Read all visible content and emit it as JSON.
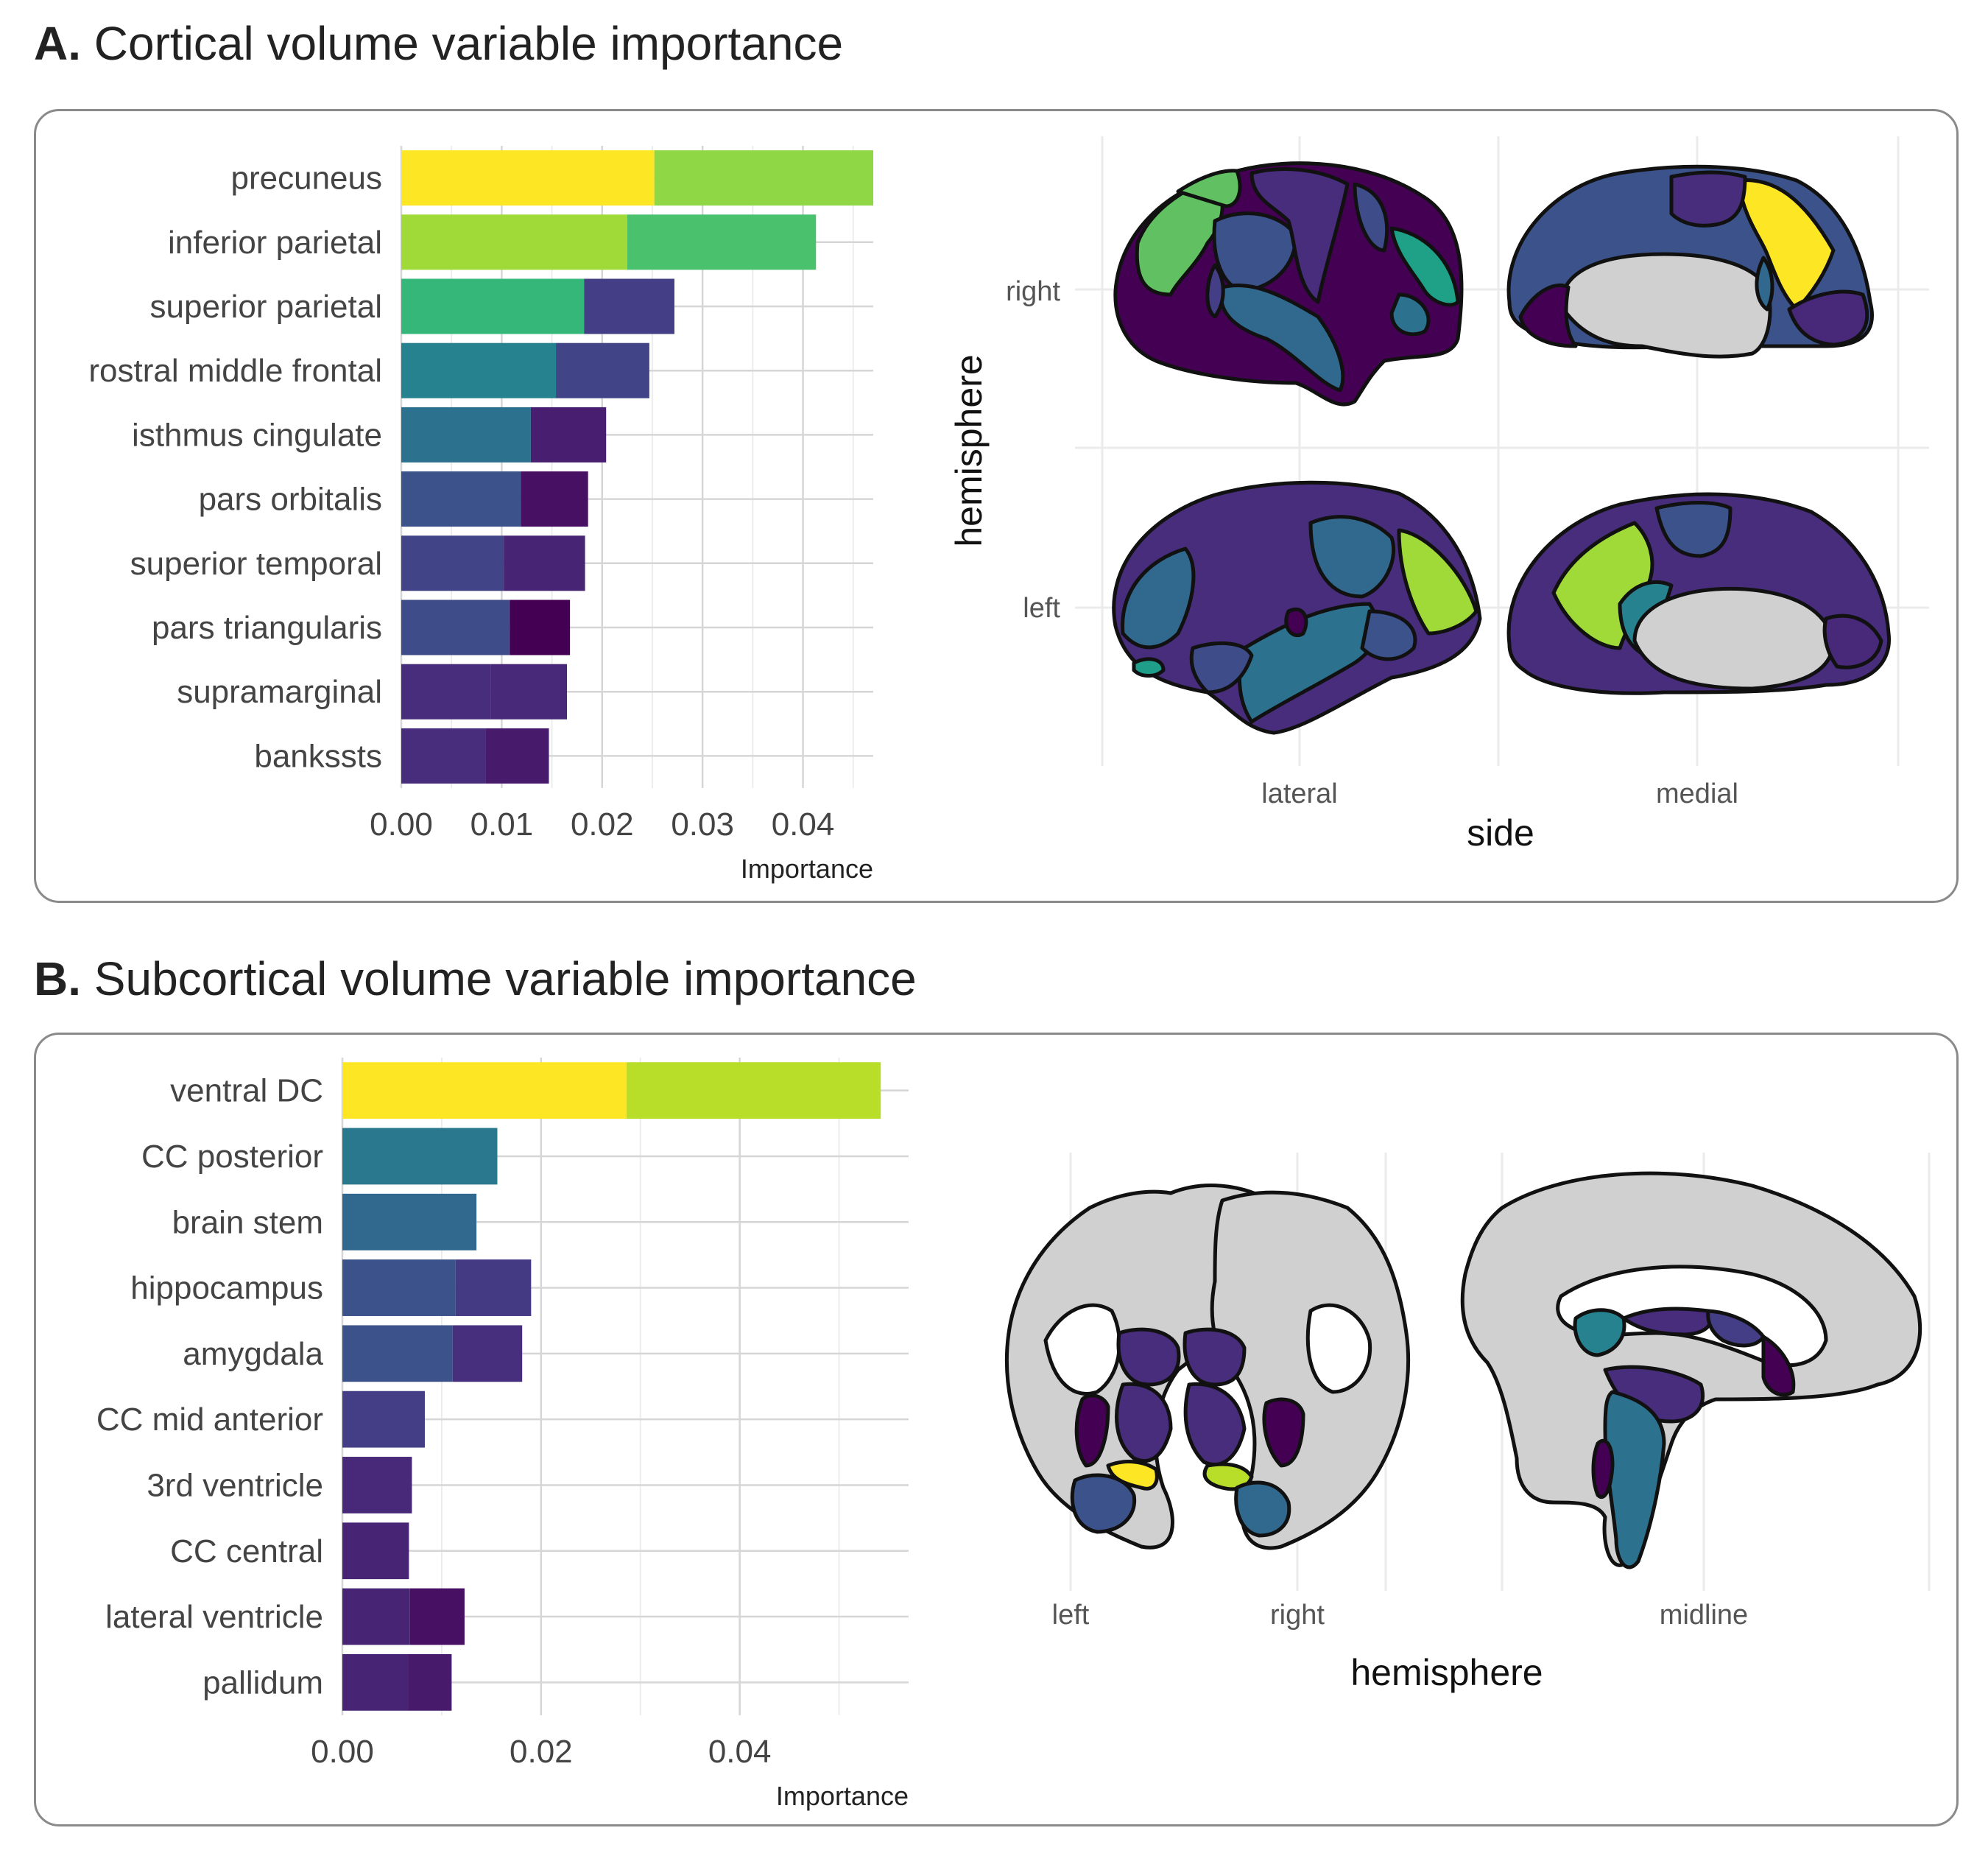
{
  "panels": {
    "a": {
      "letter": "A.",
      "title": "Cortical volume variable importance"
    },
    "b": {
      "letter": "B.",
      "title": "Subcortical volume variable importance"
    }
  },
  "chart_data": [
    {
      "type": "bar",
      "stacked": true,
      "title": "Cortical volume variable importance",
      "xlabel": "Importance",
      "xlim": [
        0,
        0.047
      ],
      "xticks": [
        "0.00",
        "0.01",
        "0.02",
        "0.03",
        "0.04"
      ],
      "grid": true,
      "categories": [
        "precuneus",
        "inferior parietal",
        "superior parietal",
        "rostral middle frontal",
        "isthmus cingulate",
        "pars orbitalis",
        "superior temporal",
        "pars triangularis",
        "supramarginal",
        "bankssts"
      ],
      "series": [
        {
          "values": [
            0.0252,
            0.0225,
            0.0182,
            0.0154,
            0.0129,
            0.0119,
            0.0102,
            0.0108,
            0.0089,
            0.0084
          ],
          "colors": [
            "#fde725",
            "#a0da39",
            "#35b779",
            "#26828e",
            "#2c728e",
            "#3b528b",
            "#414487",
            "#3e4c8a",
            "#472d7b",
            "#472d7b"
          ]
        },
        {
          "values": [
            0.0218,
            0.0188,
            0.009,
            0.0093,
            0.0075,
            0.0067,
            0.0081,
            0.006,
            0.0076,
            0.0063
          ],
          "colors": [
            "#8fd744",
            "#4ac16d",
            "#433e85",
            "#414487",
            "#481f70",
            "#471063",
            "#482475",
            "#440154",
            "#482878",
            "#481a6c"
          ]
        }
      ]
    },
    {
      "type": "bar",
      "stacked": true,
      "title": "Subcortical volume variable importance",
      "xlabel": "Importance",
      "xlim": [
        0,
        0.057
      ],
      "xticks": [
        "0.00",
        "0.02",
        "0.04"
      ],
      "grid": true,
      "categories": [
        "ventral DC",
        "CC posterior",
        "brain stem",
        "hippocampus",
        "amygdala",
        "CC mid anterior",
        "3rd ventricle",
        "CC central",
        "lateral ventricle",
        "pallidum"
      ],
      "series": [
        {
          "values": [
            0.0286,
            0.0156,
            0.0135,
            0.0114,
            0.0111,
            0.0083,
            0.007,
            0.0067,
            0.0068,
            0.0066
          ],
          "colors": [
            "#fde725",
            "#2a788e",
            "#31688e",
            "#3b528b",
            "#3b528b",
            "#433e85",
            "#482878",
            "#482475",
            "#482475",
            "#482475"
          ]
        },
        {
          "values": [
            0.0256,
            0,
            0,
            0.0076,
            0.007,
            0,
            0,
            0,
            0.0055,
            0.0044
          ],
          "colors": [
            "#b8de29",
            "#2a788e",
            "#31688e",
            "#443983",
            "#472f7d",
            "#433e85",
            "#482878",
            "#482475",
            "#471063",
            "#481a6c"
          ]
        }
      ]
    }
  ],
  "brain_a": {
    "ylabel": "hemisphere",
    "xlabel": "side",
    "rows": [
      "right",
      "left"
    ],
    "cols": [
      "lateral",
      "medial"
    ]
  },
  "brain_b": {
    "xlabel": "hemisphere",
    "cols": [
      "left",
      "right",
      "midline"
    ]
  }
}
